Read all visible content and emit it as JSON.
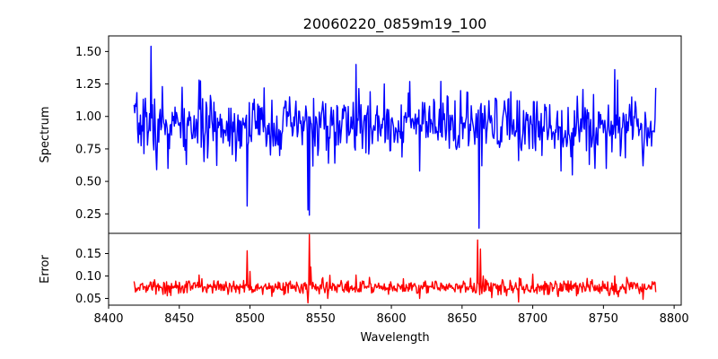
{
  "chart_data": [
    {
      "type": "line",
      "title": "20060220_0859m19_100",
      "xlabel": "",
      "ylabel": "Spectrum",
      "xlim": [
        8400,
        8805
      ],
      "ylim": [
        0.1,
        1.62
      ],
      "yticks": [
        0.25,
        0.5,
        0.75,
        1.0,
        1.25,
        1.5
      ],
      "ytick_labels": [
        "0.25",
        "0.50",
        "0.75",
        "1.00",
        "1.25",
        "1.50"
      ],
      "xticks_visible": false,
      "color": "#0000ff",
      "series": [
        {
          "x_start": 8418,
          "x_end": 8787,
          "baseline": 0.93,
          "noise": 0.11,
          "seed": 7,
          "features": [
            {
              "x": 8426,
              "y": 1.14
            },
            {
              "x": 8430,
              "y": 1.54
            },
            {
              "x": 8434,
              "y": 0.59
            },
            {
              "x": 8438,
              "y": 1.23
            },
            {
              "x": 8442,
              "y": 0.6
            },
            {
              "x": 8455,
              "y": 0.63
            },
            {
              "x": 8464,
              "y": 1.28
            },
            {
              "x": 8470,
              "y": 0.68
            },
            {
              "x": 8498,
              "y": 0.31
            },
            {
              "x": 8502,
              "y": 1.1
            },
            {
              "x": 8510,
              "y": 1.22
            },
            {
              "x": 8520,
              "y": 0.78
            },
            {
              "x": 8541,
              "y": 0.28
            },
            {
              "x": 8542,
              "y": 0.24
            },
            {
              "x": 8548,
              "y": 0.7
            },
            {
              "x": 8560,
              "y": 0.64
            },
            {
              "x": 8575,
              "y": 1.4
            },
            {
              "x": 8582,
              "y": 0.72
            },
            {
              "x": 8595,
              "y": 1.25
            },
            {
              "x": 8612,
              "y": 1.18
            },
            {
              "x": 8620,
              "y": 0.58
            },
            {
              "x": 8640,
              "y": 1.15
            },
            {
              "x": 8662,
              "y": 0.14
            },
            {
              "x": 8664,
              "y": 0.62
            },
            {
              "x": 8680,
              "y": 1.12
            },
            {
              "x": 8690,
              "y": 0.66
            },
            {
              "x": 8720,
              "y": 0.58
            },
            {
              "x": 8728,
              "y": 0.55
            },
            {
              "x": 8740,
              "y": 0.63
            },
            {
              "x": 8744,
              "y": 0.6
            },
            {
              "x": 8758,
              "y": 1.36
            },
            {
              "x": 8760,
              "y": 1.28
            },
            {
              "x": 8770,
              "y": 1.15
            },
            {
              "x": 8778,
              "y": 0.62
            },
            {
              "x": 8787,
              "y": 1.22
            }
          ]
        }
      ]
    },
    {
      "type": "line",
      "title": "",
      "xlabel": "Wavelength",
      "ylabel": "Error",
      "xlim": [
        8400,
        8805
      ],
      "ylim": [
        0.035,
        0.195
      ],
      "xticks": [
        8400,
        8450,
        8500,
        8550,
        8600,
        8650,
        8700,
        8750,
        8800
      ],
      "xtick_labels": [
        "8400",
        "8450",
        "8500",
        "8550",
        "8600",
        "8650",
        "8700",
        "8750",
        "8800"
      ],
      "yticks": [
        0.05,
        0.1,
        0.15
      ],
      "ytick_labels": [
        "0.05",
        "0.10",
        "0.15"
      ],
      "color": "#ff0000",
      "series": [
        {
          "x_start": 8418,
          "x_end": 8787,
          "baseline": 0.075,
          "noise": 0.008,
          "seed": 13,
          "features": [
            {
              "x": 8418,
              "y": 0.088
            },
            {
              "x": 8464,
              "y": 0.102
            },
            {
              "x": 8498,
              "y": 0.156
            },
            {
              "x": 8500,
              "y": 0.11
            },
            {
              "x": 8541,
              "y": 0.04
            },
            {
              "x": 8542,
              "y": 0.192
            },
            {
              "x": 8543,
              "y": 0.12
            },
            {
              "x": 8555,
              "y": 0.05
            },
            {
              "x": 8575,
              "y": 0.102
            },
            {
              "x": 8620,
              "y": 0.05
            },
            {
              "x": 8661,
              "y": 0.18
            },
            {
              "x": 8663,
              "y": 0.16
            },
            {
              "x": 8665,
              "y": 0.1
            },
            {
              "x": 8690,
              "y": 0.042
            },
            {
              "x": 8700,
              "y": 0.104
            },
            {
              "x": 8758,
              "y": 0.1
            },
            {
              "x": 8778,
              "y": 0.048
            },
            {
              "x": 8787,
              "y": 0.064
            }
          ]
        }
      ]
    }
  ]
}
